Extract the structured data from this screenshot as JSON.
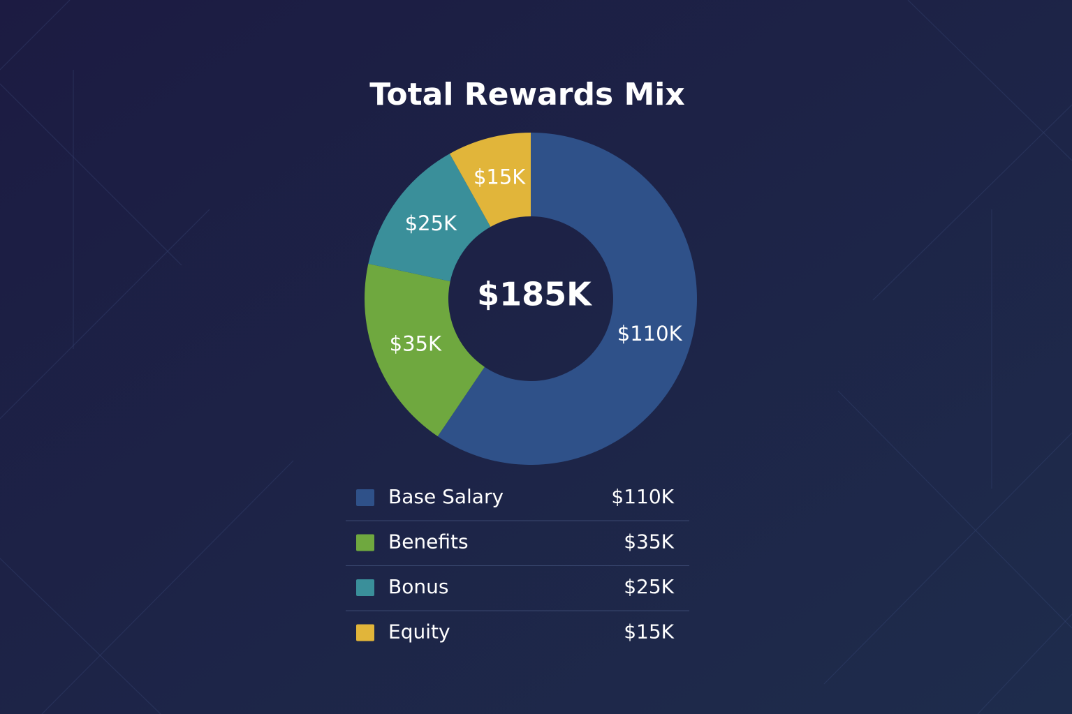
{
  "chart_data": {
    "type": "donut",
    "title": "Total Rewards Mix",
    "center_text": "$185K",
    "categories": [
      "Base Salary",
      "Benefits",
      "Bonus",
      "Equity"
    ],
    "values": [
      110,
      35,
      25,
      15
    ],
    "value_labels": [
      "$110K",
      "$35K",
      "$25K",
      "$15K"
    ],
    "colors": [
      "#2f5189",
      "#6fa83f",
      "#3a8f9a",
      "#e1b53a"
    ]
  }
}
